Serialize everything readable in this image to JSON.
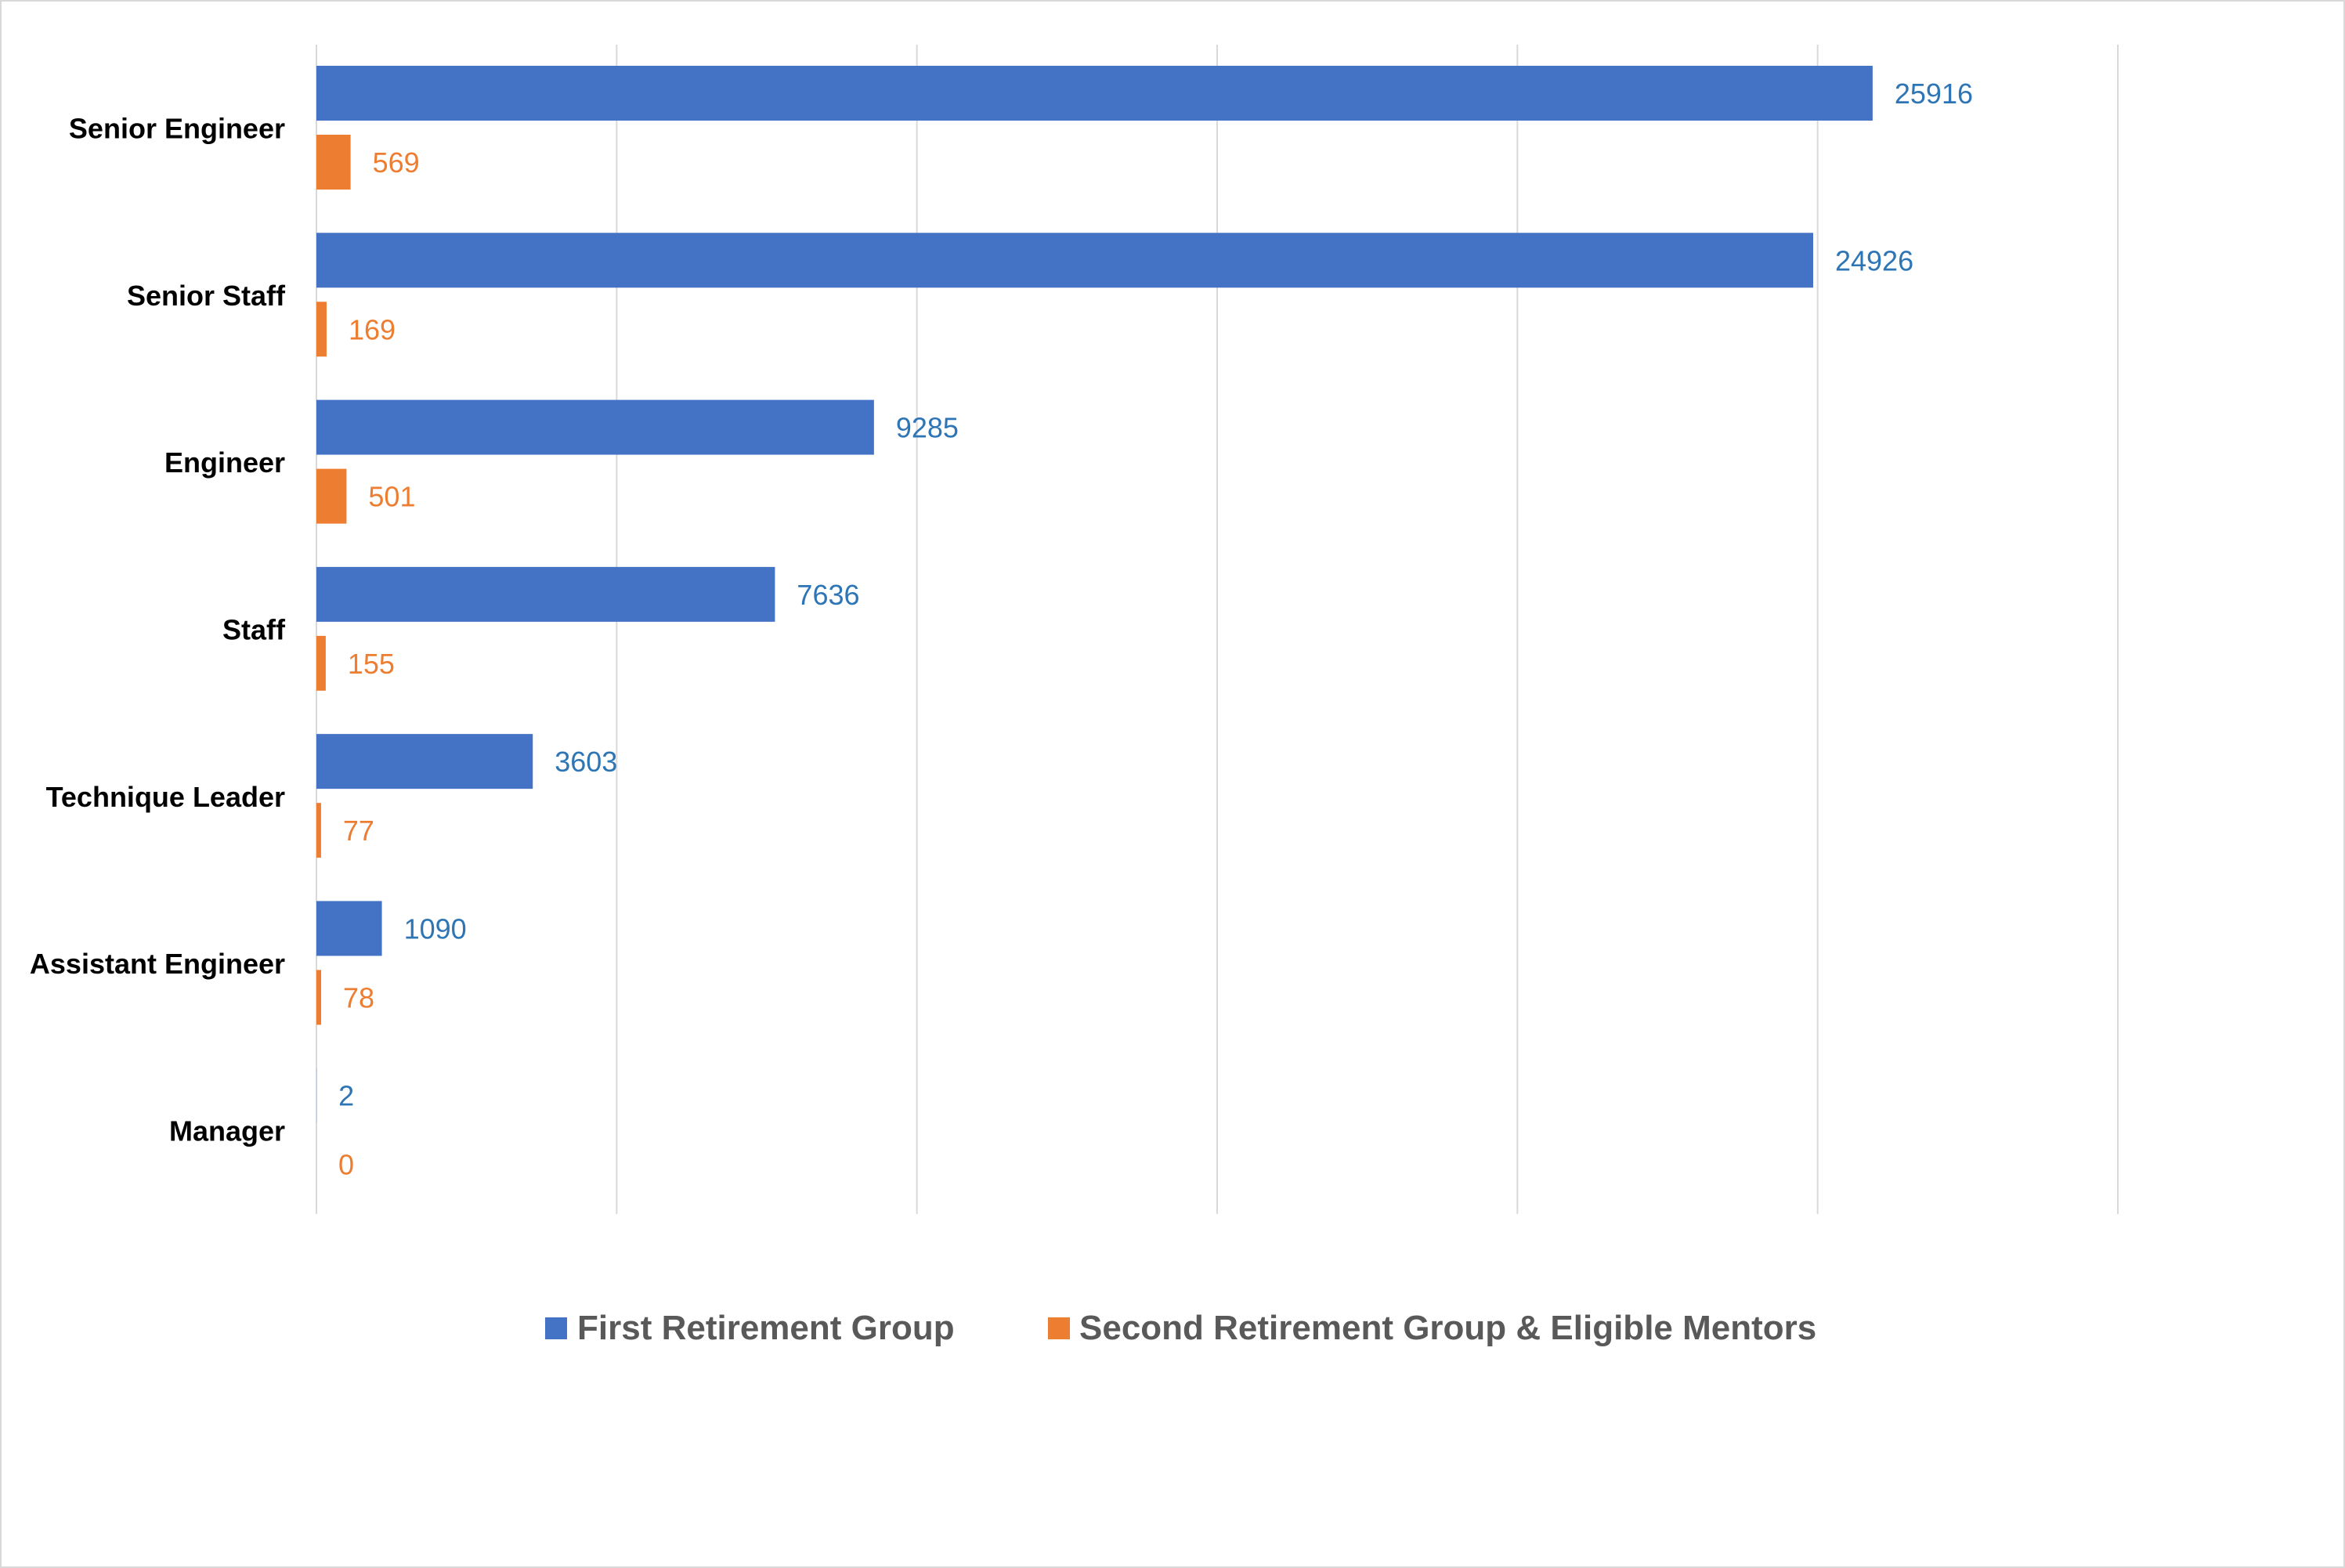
{
  "chart_data": {
    "type": "bar",
    "orientation": "horizontal",
    "categories": [
      "Senior Engineer",
      "Senior Staff",
      "Engineer",
      "Staff",
      "Technique Leader",
      "Assistant Engineer",
      "Manager"
    ],
    "series": [
      {
        "name": "First Retirement Group",
        "color": "#4472c4",
        "label_color": "#2e75b6",
        "values": [
          25916,
          24926,
          9285,
          7636,
          3603,
          1090,
          2
        ]
      },
      {
        "name": "Second Retirement Group & Eligible Mentors",
        "color": "#ed7d31",
        "label_color": "#ed7d31",
        "values": [
          569,
          169,
          501,
          155,
          77,
          78,
          0
        ]
      }
    ],
    "xlim": [
      0,
      30000
    ],
    "grid": true,
    "legend_position": "bottom",
    "title": "",
    "xlabel": "",
    "ylabel": ""
  }
}
